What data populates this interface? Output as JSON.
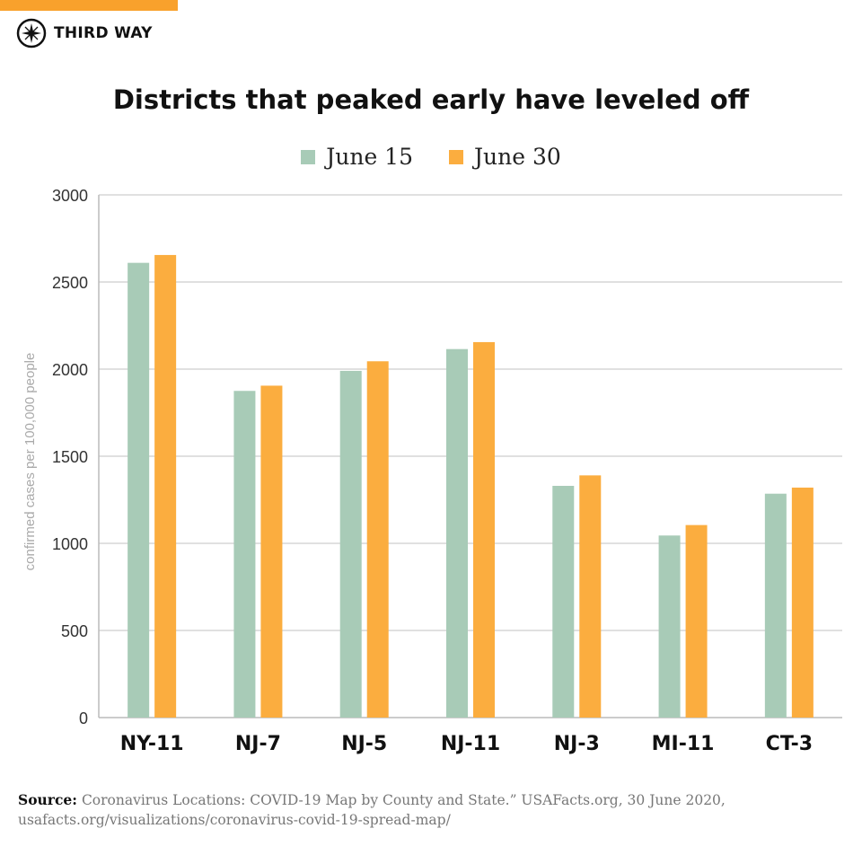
{
  "brand": {
    "name": "THIRD WAY",
    "accent": "#f9a12c"
  },
  "chart_data": {
    "type": "bar",
    "title": "Districts that peaked early have leveled off",
    "ylabel": "confirmed cases per 100,000 people",
    "xlabel": "",
    "ylim": [
      0,
      3000
    ],
    "yticks": [
      0,
      500,
      1000,
      1500,
      2000,
      2500,
      3000
    ],
    "grid": true,
    "legend_placement": "top-center",
    "categories": [
      "NY-11",
      "NJ-7",
      "NJ-5",
      "NJ-11",
      "NJ-3",
      "MI-11",
      "CT-3"
    ],
    "series": [
      {
        "name": "June 15",
        "color": "#a8cbb7",
        "values": [
          2610,
          1875,
          1990,
          2115,
          1330,
          1045,
          1285
        ]
      },
      {
        "name": "June 30",
        "color": "#fbad3f",
        "values": [
          2655,
          1905,
          2045,
          2155,
          1390,
          1105,
          1320
        ]
      }
    ]
  },
  "source": {
    "label": "Source:",
    "text": "Coronavirus Locations: COVID-19 Map by County and State.” USAFacts.org, 30 June 2020,",
    "url": "usafacts.org/visualizations/coronavirus-covid-19-spread-map/"
  }
}
